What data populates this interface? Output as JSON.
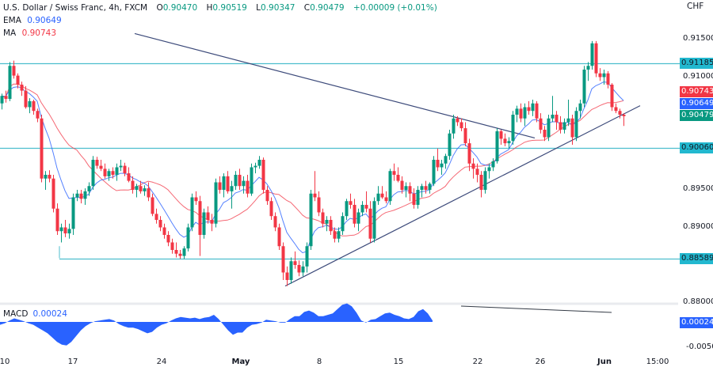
{
  "header": {
    "symbol_title": "U.S. Dollar / Swiss Franc, 4h, FXCM",
    "open_label": "O",
    "open": "0.90470",
    "high_label": "H",
    "high": "0.90519",
    "low_label": "L",
    "low": "0.90347",
    "close_label": "C",
    "close": "0.90479",
    "change": "+0.00009 (+0.01%)",
    "ema_label": "EMA",
    "ema_value": "0.90649",
    "ma_label": "MA",
    "ma_value": "0.90743",
    "currency": "CHF"
  },
  "macd": {
    "label": "MACD",
    "value": "0.00024"
  },
  "colors": {
    "up": "#089981",
    "down": "#f23645",
    "ema": "#2962ff",
    "ma": "#f23645",
    "level": "#4dbecd",
    "trend": "#3c4a7a",
    "macd": "#2962ff",
    "tag_level": "#22b8cf",
    "tag_ma": "#f23645",
    "tag_ema": "#2962ff",
    "tag_close": "#089981",
    "tag_macd": "#2962ff"
  },
  "price_axis": {
    "ticks": [
      {
        "label": "0.91500",
        "price": 0.915
      },
      {
        "label": "0.91000",
        "price": 0.91
      },
      {
        "label": "0.89500",
        "price": 0.895
      },
      {
        "label": "0.89000",
        "price": 0.89
      },
      {
        "label": "0.88000",
        "price": 0.88
      }
    ],
    "tags": [
      {
        "label": "0.91185",
        "price": 0.91185,
        "kind": "level"
      },
      {
        "label": "0.90743",
        "price": 0.90743,
        "kind": "ma"
      },
      {
        "label": "0.90649",
        "price": 0.90649,
        "kind": "ema"
      },
      {
        "label": "0.90479",
        "price": 0.90479,
        "kind": "close"
      },
      {
        "label": "0.90060",
        "price": 0.9006,
        "kind": "level"
      },
      {
        "label": "0.88589",
        "price": 0.88589,
        "kind": "level"
      }
    ],
    "macd_ticks": [
      {
        "label": "-0.0050",
        "y": 440
      }
    ],
    "macd_tag": {
      "label": "0.00024"
    }
  },
  "time_axis": [
    {
      "label": "10",
      "x": 6,
      "bold": false
    },
    {
      "label": "17",
      "x": 92,
      "bold": false
    },
    {
      "label": "24",
      "x": 204,
      "bold": false
    },
    {
      "label": "May",
      "x": 304,
      "bold": true
    },
    {
      "label": "8",
      "x": 403,
      "bold": false
    },
    {
      "label": "15",
      "x": 503,
      "bold": false
    },
    {
      "label": "22",
      "x": 603,
      "bold": false
    },
    {
      "label": "26",
      "x": 682,
      "bold": false
    },
    {
      "label": "Jun",
      "x": 763,
      "bold": true
    },
    {
      "label": "15:00",
      "x": 830,
      "bold": false
    }
  ],
  "chart_data": {
    "type": "candlestick",
    "title": "U.S. Dollar / Swiss Franc, 4h, FXCM",
    "xlabel": "",
    "ylabel": "CHF",
    "ylim": [
      0.8775,
      0.9165
    ],
    "x_ticks": [
      "10",
      "17",
      "24",
      "May",
      "8",
      "15",
      "22",
      "26",
      "Jun",
      "15:00"
    ],
    "horizontal_levels": [
      0.91185,
      0.9006,
      0.88589
    ],
    "trendlines": [
      {
        "name": "descending",
        "from": [
          170,
          0.9158
        ],
        "to": [
          675,
          0.9019
        ]
      },
      {
        "name": "ascending support",
        "from": [
          360,
          0.8822
        ],
        "to": [
          808,
          0.9062
        ]
      }
    ],
    "indicators": {
      "EMA": 0.90649,
      "MA": 0.90743,
      "MACD": 0.00024
    },
    "last": {
      "open": 0.9047,
      "high": 0.90519,
      "low": 0.90347,
      "close": 0.90479,
      "change": 9e-05,
      "change_pct": 0.01
    },
    "candles": [
      [
        2,
        0.9065,
        0.9078,
        0.9057,
        0.9075
      ],
      [
        7,
        0.9075,
        0.9082,
        0.9066,
        0.9071
      ],
      [
        12,
        0.9071,
        0.912,
        0.9068,
        0.9115
      ],
      [
        17,
        0.9115,
        0.9122,
        0.9098,
        0.9102
      ],
      [
        22,
        0.9102,
        0.9105,
        0.9085,
        0.909
      ],
      [
        27,
        0.909,
        0.9094,
        0.9075,
        0.9082
      ],
      [
        32,
        0.9082,
        0.9088,
        0.9058,
        0.906
      ],
      [
        37,
        0.906,
        0.9072,
        0.9052,
        0.9068
      ],
      [
        42,
        0.9068,
        0.907,
        0.905,
        0.9055
      ],
      [
        47,
        0.9055,
        0.9058,
        0.904,
        0.9045
      ],
      [
        52,
        0.9045,
        0.905,
        0.896,
        0.8965
      ],
      [
        57,
        0.8965,
        0.8975,
        0.895,
        0.897
      ],
      [
        62,
        0.897,
        0.8976,
        0.896,
        0.8965
      ],
      [
        67,
        0.8965,
        0.897,
        0.892,
        0.8925
      ],
      [
        72,
        0.8925,
        0.8932,
        0.889,
        0.8895
      ],
      [
        77,
        0.8895,
        0.8905,
        0.888,
        0.89
      ],
      [
        82,
        0.89,
        0.891,
        0.8887,
        0.8892
      ],
      [
        87,
        0.8892,
        0.8905,
        0.8885,
        0.8898
      ],
      [
        92,
        0.8898,
        0.8945,
        0.889,
        0.894
      ],
      [
        97,
        0.894,
        0.895,
        0.8935,
        0.8945
      ],
      [
        102,
        0.8945,
        0.895,
        0.8932,
        0.8938
      ],
      [
        107,
        0.8938,
        0.8952,
        0.893,
        0.8948
      ],
      [
        112,
        0.8948,
        0.896,
        0.8942,
        0.8955
      ],
      [
        117,
        0.8955,
        0.8995,
        0.895,
        0.899
      ],
      [
        122,
        0.899,
        0.8994,
        0.8978,
        0.8982
      ],
      [
        127,
        0.8982,
        0.899,
        0.8975,
        0.8978
      ],
      [
        132,
        0.8978,
        0.8985,
        0.8965,
        0.8968
      ],
      [
        137,
        0.8968,
        0.8978,
        0.8962,
        0.8975
      ],
      [
        142,
        0.8975,
        0.898,
        0.8965,
        0.897
      ],
      [
        147,
        0.897,
        0.8985,
        0.8962,
        0.898
      ],
      [
        152,
        0.898,
        0.899,
        0.8975,
        0.8982
      ],
      [
        157,
        0.8982,
        0.8986,
        0.8968,
        0.8972
      ],
      [
        162,
        0.8972,
        0.898,
        0.896,
        0.8962
      ],
      [
        167,
        0.8962,
        0.8968,
        0.8945,
        0.895
      ],
      [
        172,
        0.895,
        0.8958,
        0.894,
        0.8955
      ],
      [
        177,
        0.8955,
        0.8962,
        0.8945,
        0.8948
      ],
      [
        182,
        0.8948,
        0.8956,
        0.8942,
        0.8952
      ],
      [
        187,
        0.8952,
        0.896,
        0.8935,
        0.894
      ],
      [
        192,
        0.894,
        0.8945,
        0.8915,
        0.8918
      ],
      [
        197,
        0.8918,
        0.8925,
        0.8905,
        0.891
      ],
      [
        202,
        0.891,
        0.8915,
        0.8895,
        0.89
      ],
      [
        207,
        0.89,
        0.8905,
        0.8885,
        0.889
      ],
      [
        212,
        0.889,
        0.8895,
        0.8875,
        0.888
      ],
      [
        217,
        0.888,
        0.8885,
        0.8865,
        0.887
      ],
      [
        222,
        0.887,
        0.888,
        0.886,
        0.8865
      ],
      [
        227,
        0.8865,
        0.887,
        0.8858,
        0.8862
      ],
      [
        232,
        0.8862,
        0.8875,
        0.8858,
        0.8872
      ],
      [
        237,
        0.8872,
        0.8905,
        0.8868,
        0.89
      ],
      [
        242,
        0.89,
        0.8945,
        0.8895,
        0.894
      ],
      [
        247,
        0.894,
        0.8948,
        0.893,
        0.8935
      ],
      [
        252,
        0.8935,
        0.8942,
        0.8862,
        0.889
      ],
      [
        257,
        0.889,
        0.8925,
        0.8885,
        0.892
      ],
      [
        262,
        0.892,
        0.8928,
        0.8905,
        0.891
      ],
      [
        267,
        0.891,
        0.8918,
        0.8895,
        0.8905
      ],
      [
        272,
        0.8905,
        0.8965,
        0.89,
        0.896
      ],
      [
        277,
        0.896,
        0.8968,
        0.8945,
        0.895
      ],
      [
        282,
        0.895,
        0.8972,
        0.894,
        0.8968
      ],
      [
        287,
        0.8968,
        0.8975,
        0.8945,
        0.8948
      ],
      [
        292,
        0.8948,
        0.8962,
        0.8925,
        0.8955
      ],
      [
        297,
        0.8955,
        0.8975,
        0.895,
        0.897
      ],
      [
        302,
        0.897,
        0.8978,
        0.895,
        0.8955
      ],
      [
        307,
        0.8955,
        0.8968,
        0.8945,
        0.8962
      ],
      [
        312,
        0.8962,
        0.897,
        0.894,
        0.8945
      ],
      [
        317,
        0.8945,
        0.8985,
        0.8942,
        0.898
      ],
      [
        322,
        0.898,
        0.8986,
        0.8972,
        0.8982
      ],
      [
        327,
        0.8982,
        0.8995,
        0.8978,
        0.899
      ],
      [
        332,
        0.899,
        0.8993,
        0.8945,
        0.895
      ],
      [
        337,
        0.895,
        0.8955,
        0.893,
        0.8935
      ],
      [
        342,
        0.8935,
        0.894,
        0.891,
        0.8915
      ],
      [
        347,
        0.8915,
        0.892,
        0.8895,
        0.89
      ],
      [
        352,
        0.89,
        0.8905,
        0.887,
        0.8875
      ],
      [
        357,
        0.8875,
        0.888,
        0.883,
        0.884
      ],
      [
        362,
        0.884,
        0.8848,
        0.8822,
        0.883
      ],
      [
        367,
        0.883,
        0.886,
        0.8825,
        0.8855
      ],
      [
        372,
        0.8855,
        0.8868,
        0.8845,
        0.885
      ],
      [
        377,
        0.885,
        0.8856,
        0.8835,
        0.884
      ],
      [
        382,
        0.884,
        0.8855,
        0.8835,
        0.8848
      ],
      [
        387,
        0.8848,
        0.888,
        0.884,
        0.8875
      ],
      [
        392,
        0.8875,
        0.895,
        0.887,
        0.8945
      ],
      [
        397,
        0.8945,
        0.8975,
        0.8935,
        0.894
      ],
      [
        402,
        0.894,
        0.8948,
        0.8915,
        0.892
      ],
      [
        407,
        0.892,
        0.8925,
        0.89,
        0.8905
      ],
      [
        412,
        0.8905,
        0.8915,
        0.8895,
        0.891
      ],
      [
        417,
        0.891,
        0.8915,
        0.889,
        0.8895
      ],
      [
        422,
        0.8895,
        0.89,
        0.888,
        0.8885
      ],
      [
        427,
        0.8885,
        0.89,
        0.888,
        0.8895
      ],
      [
        432,
        0.8895,
        0.892,
        0.889,
        0.8915
      ],
      [
        437,
        0.8915,
        0.8938,
        0.891,
        0.8935
      ],
      [
        442,
        0.8935,
        0.8945,
        0.8925,
        0.893
      ],
      [
        447,
        0.893,
        0.8938,
        0.89,
        0.8905
      ],
      [
        452,
        0.8905,
        0.8925,
        0.8895,
        0.892
      ],
      [
        457,
        0.892,
        0.8935,
        0.8915,
        0.893
      ],
      [
        462,
        0.893,
        0.8948,
        0.892,
        0.8925
      ],
      [
        467,
        0.8925,
        0.8935,
        0.888,
        0.8885
      ],
      [
        472,
        0.8885,
        0.894,
        0.888,
        0.8935
      ],
      [
        477,
        0.8935,
        0.8955,
        0.893,
        0.8945
      ],
      [
        482,
        0.8945,
        0.8955,
        0.8938,
        0.894
      ],
      [
        487,
        0.894,
        0.8948,
        0.8932,
        0.8935
      ],
      [
        492,
        0.8935,
        0.8978,
        0.893,
        0.8975
      ],
      [
        497,
        0.8975,
        0.8985,
        0.8962,
        0.897
      ],
      [
        502,
        0.897,
        0.898,
        0.896,
        0.8962
      ],
      [
        507,
        0.8962,
        0.8968,
        0.8945,
        0.895
      ],
      [
        512,
        0.895,
        0.896,
        0.894,
        0.8955
      ],
      [
        517,
        0.8955,
        0.896,
        0.8935,
        0.8945
      ],
      [
        522,
        0.8945,
        0.8952,
        0.8925,
        0.893
      ],
      [
        527,
        0.893,
        0.8955,
        0.8925,
        0.895
      ],
      [
        532,
        0.895,
        0.8958,
        0.894,
        0.8955
      ],
      [
        537,
        0.8955,
        0.8962,
        0.8945,
        0.895
      ],
      [
        542,
        0.895,
        0.896,
        0.8945,
        0.8958
      ],
      [
        547,
        0.8958,
        0.8995,
        0.8955,
        0.899
      ],
      [
        552,
        0.899,
        0.9005,
        0.8975,
        0.898
      ],
      [
        557,
        0.898,
        0.899,
        0.897,
        0.8985
      ],
      [
        562,
        0.8985,
        0.8998,
        0.8978,
        0.8995
      ],
      [
        567,
        0.8995,
        0.903,
        0.899,
        0.9025
      ],
      [
        572,
        0.9025,
        0.905,
        0.9018,
        0.9045
      ],
      [
        577,
        0.9045,
        0.9048,
        0.9035,
        0.904
      ],
      [
        582,
        0.904,
        0.9045,
        0.9028,
        0.9032
      ],
      [
        587,
        0.9032,
        0.904,
        0.9008,
        0.9012
      ],
      [
        592,
        0.9012,
        0.9018,
        0.8975,
        0.8985
      ],
      [
        597,
        0.8985,
        0.8992,
        0.8965,
        0.8978
      ],
      [
        602,
        0.8978,
        0.8985,
        0.896,
        0.897
      ],
      [
        607,
        0.897,
        0.8975,
        0.894,
        0.895
      ],
      [
        612,
        0.895,
        0.898,
        0.8945,
        0.8975
      ],
      [
        617,
        0.8975,
        0.8985,
        0.8965,
        0.898
      ],
      [
        622,
        0.898,
        0.8992,
        0.8975,
        0.8988
      ],
      [
        627,
        0.8988,
        0.9032,
        0.8985,
        0.9028
      ],
      [
        632,
        0.9028,
        0.903,
        0.901,
        0.9018
      ],
      [
        637,
        0.9018,
        0.9025,
        0.9008,
        0.9012
      ],
      [
        642,
        0.9012,
        0.902,
        0.9005,
        0.9015
      ],
      [
        647,
        0.9015,
        0.9055,
        0.901,
        0.905
      ],
      [
        652,
        0.905,
        0.9062,
        0.904,
        0.9058
      ],
      [
        657,
        0.9058,
        0.9065,
        0.904,
        0.9045
      ],
      [
        662,
        0.9045,
        0.9065,
        0.9035,
        0.906
      ],
      [
        667,
        0.906,
        0.9068,
        0.905,
        0.9055
      ],
      [
        672,
        0.9055,
        0.907,
        0.9048,
        0.9065
      ],
      [
        677,
        0.9065,
        0.9068,
        0.904,
        0.9045
      ],
      [
        682,
        0.9045,
        0.9052,
        0.9025,
        0.903
      ],
      [
        687,
        0.903,
        0.9035,
        0.9015,
        0.902
      ],
      [
        692,
        0.902,
        0.905,
        0.9015,
        0.9045
      ],
      [
        697,
        0.9045,
        0.9075,
        0.904,
        0.905
      ],
      [
        702,
        0.905,
        0.9055,
        0.903,
        0.904
      ],
      [
        707,
        0.904,
        0.9048,
        0.9025,
        0.903
      ],
      [
        712,
        0.903,
        0.9045,
        0.9025,
        0.904
      ],
      [
        717,
        0.904,
        0.907,
        0.9035,
        0.9045
      ],
      [
        722,
        0.9045,
        0.905,
        0.901,
        0.902
      ],
      [
        727,
        0.902,
        0.906,
        0.9015,
        0.9055
      ],
      [
        732,
        0.9055,
        0.907,
        0.9045,
        0.9065
      ],
      [
        737,
        0.9065,
        0.9115,
        0.906,
        0.911
      ],
      [
        742,
        0.911,
        0.912,
        0.9095,
        0.9115
      ],
      [
        747,
        0.9115,
        0.9148,
        0.911,
        0.9145
      ],
      [
        752,
        0.9145,
        0.9148,
        0.91,
        0.9105
      ],
      [
        757,
        0.9105,
        0.9112,
        0.9095,
        0.91
      ],
      [
        762,
        0.91,
        0.911,
        0.909,
        0.9105
      ],
      [
        767,
        0.9105,
        0.9108,
        0.9085,
        0.909
      ],
      [
        772,
        0.909,
        0.9092,
        0.9055,
        0.906
      ],
      [
        777,
        0.906,
        0.9065,
        0.9052,
        0.9055
      ],
      [
        782,
        0.9055,
        0.9058,
        0.9045,
        0.905
      ],
      [
        787,
        0.905,
        0.9052,
        0.9035,
        0.9048
      ]
    ],
    "macd_series": {
      "x_start": 0,
      "x_step": 6,
      "values": [
        -0.0004,
        -0.0002,
        0.0002,
        0.0005,
        0.0003,
        0.0001,
        -0.0002,
        -0.0004,
        -0.0008,
        -0.0012,
        -0.0016,
        -0.0022,
        -0.0028,
        -0.0032,
        -0.0033,
        -0.0028,
        -0.002,
        -0.0012,
        -0.0006,
        -0.0002,
        0.0001,
        0.0002,
        0.0003,
        0.0004,
        0.0002,
        -0.0003,
        -0.0006,
        -0.0008,
        -0.0008,
        -0.001,
        -0.0013,
        -0.0016,
        -0.0014,
        -0.0008,
        -0.0004,
        -0.0002,
        0.0002,
        0.0005,
        0.0007,
        0.0006,
        0.0005,
        0.0006,
        0.0004,
        0.0006,
        0.0007,
        0.001,
        0.0004,
        -0.0004,
        -0.0012,
        -0.0018,
        -0.0015,
        -0.0015,
        -0.0008,
        -0.0004,
        -0.0003,
        -0.0001,
        0.0003,
        0.0002,
        0.0001,
        -0.0001,
        -0.0001,
        0.0004,
        0.0008,
        0.0008,
        0.0014,
        0.0016,
        0.0013,
        0.0008,
        0.0008,
        0.001,
        0.0012,
        0.0018,
        0.0024,
        0.0026,
        0.0022,
        0.0013,
        0.0002,
        -0.0001,
        0.0003,
        0.0004,
        0.0008,
        0.0012,
        0.0013,
        0.001,
        0.0008,
        0.0005,
        0.0004,
        0.0007,
        0.0015,
        0.0018,
        0.0012,
        0.0002
      ],
      "divergence_line": {
        "from": [
          582,
          387
        ],
        "to": [
          772,
          395
        ]
      }
    }
  }
}
